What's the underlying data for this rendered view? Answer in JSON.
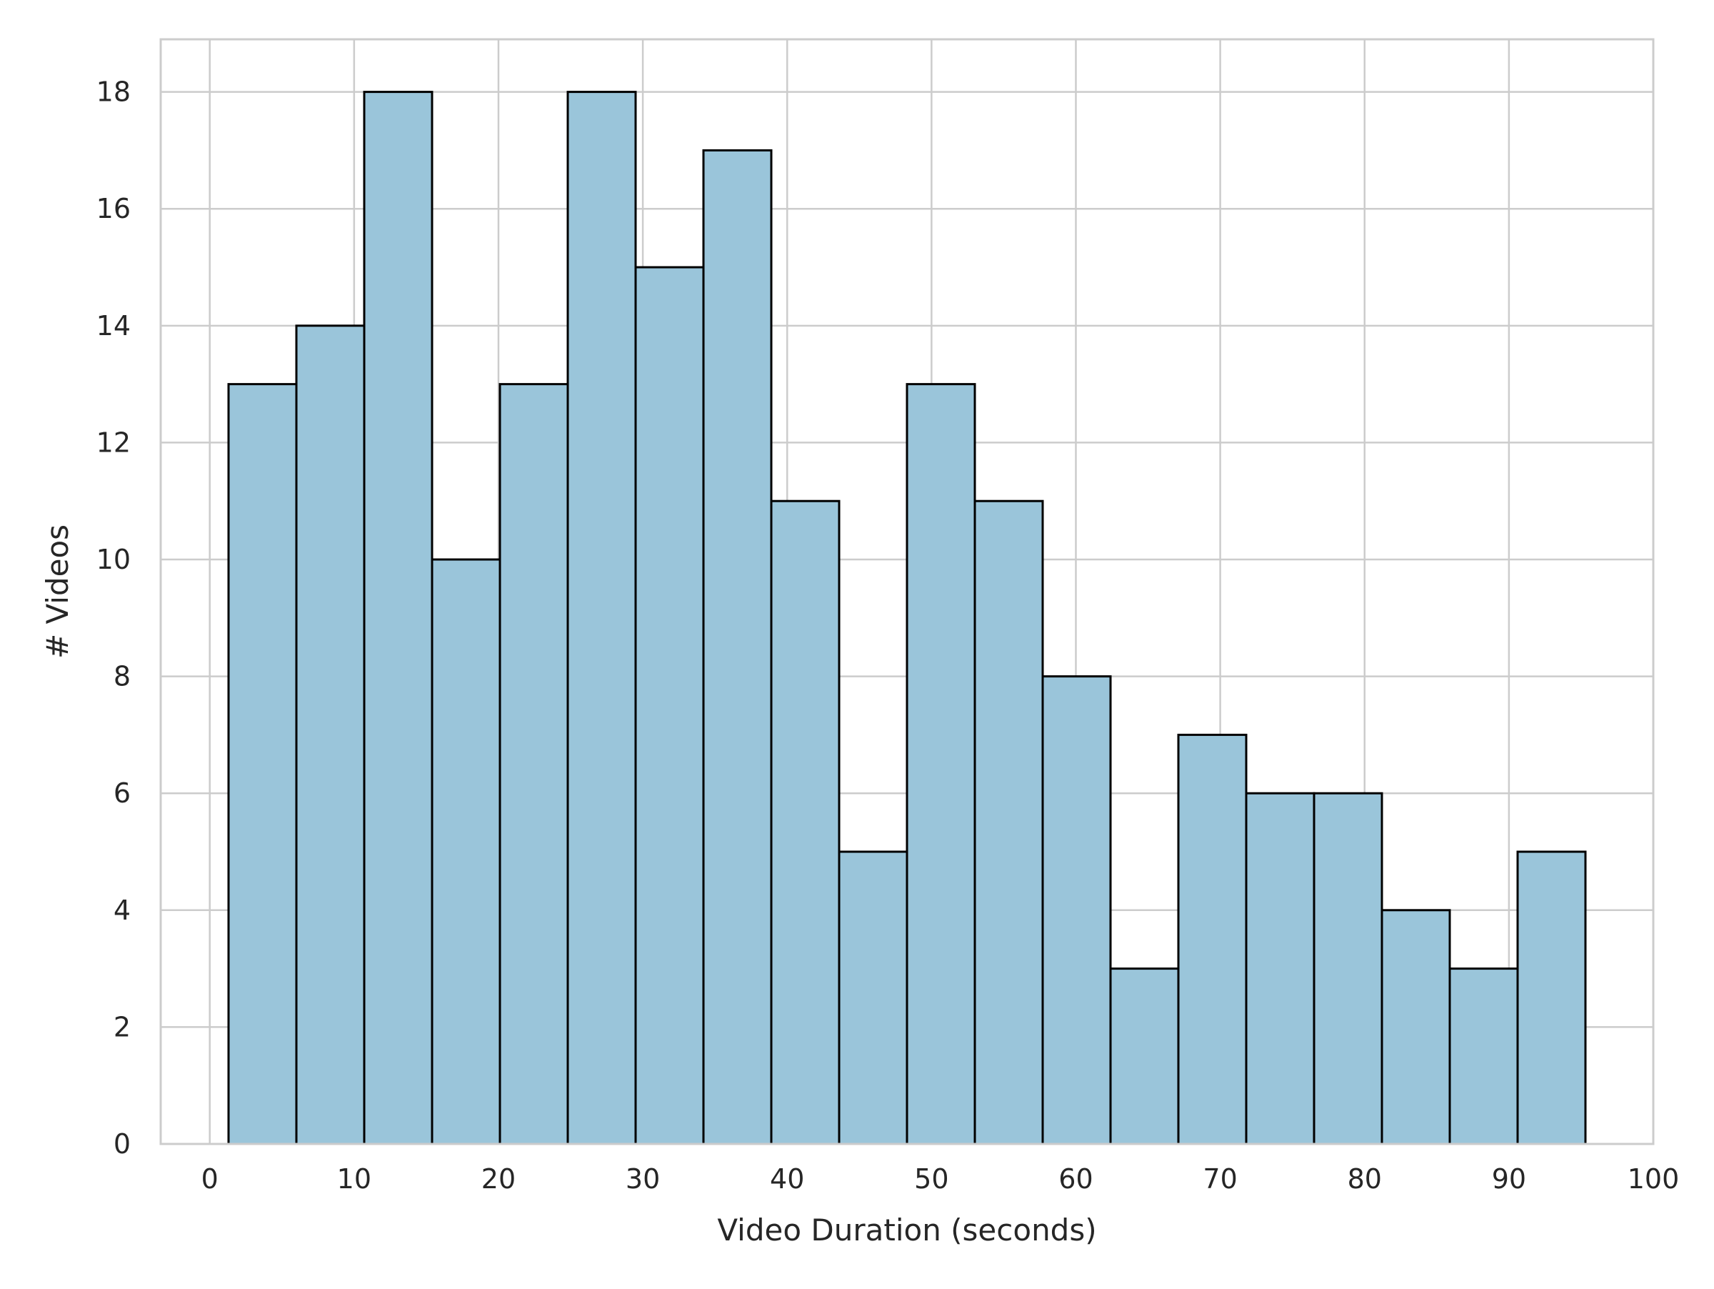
{
  "chart_data": {
    "type": "bar",
    "subtype": "histogram",
    "title": "",
    "xlabel": "Video Duration (seconds)",
    "ylabel": "# Videos",
    "xlim": [
      -3.4,
      100
    ],
    "ylim": [
      0,
      18.9
    ],
    "xticks": [
      0,
      10,
      20,
      30,
      40,
      50,
      60,
      70,
      80,
      90,
      100
    ],
    "yticks": [
      0,
      2,
      4,
      6,
      8,
      10,
      12,
      14,
      16,
      18
    ],
    "bin_edges": [
      1.3,
      6.0,
      10.7,
      15.4,
      20.1,
      24.8,
      29.5,
      34.2,
      38.9,
      43.6,
      48.3,
      53.0,
      57.7,
      62.4,
      67.1,
      71.8,
      76.5,
      81.2,
      85.9,
      90.6,
      95.3
    ],
    "counts": [
      13,
      14,
      18,
      10,
      13,
      18,
      15,
      17,
      11,
      5,
      13,
      11,
      8,
      3,
      7,
      6,
      6,
      4,
      3,
      5
    ],
    "grid": true,
    "colors": {
      "bar_fill": "#9ac5da",
      "bar_edge": "#000000",
      "grid": "#cccccc",
      "spine": "#cccccc"
    }
  }
}
